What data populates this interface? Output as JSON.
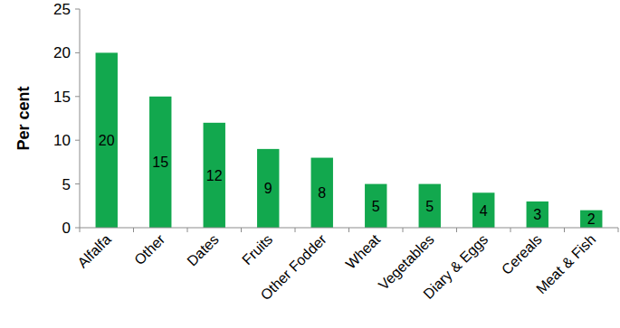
{
  "chart_data": {
    "type": "bar",
    "y_label": "Per cent",
    "categories": [
      "Alfalfa",
      "Other",
      "Dates",
      "Fruits",
      "Other Fodder",
      "Wheat",
      "Vegetables",
      "Diary & Eggs",
      "Cereals",
      "Meat & Fish"
    ],
    "values": [
      20,
      15,
      12,
      9,
      8,
      5,
      5,
      4,
      3,
      2
    ],
    "color": "#12a84e",
    "ylim": [
      0,
      25
    ],
    "yticks": [
      0,
      5,
      10,
      15,
      20,
      25
    ],
    "grid": false,
    "data_labels": true
  }
}
